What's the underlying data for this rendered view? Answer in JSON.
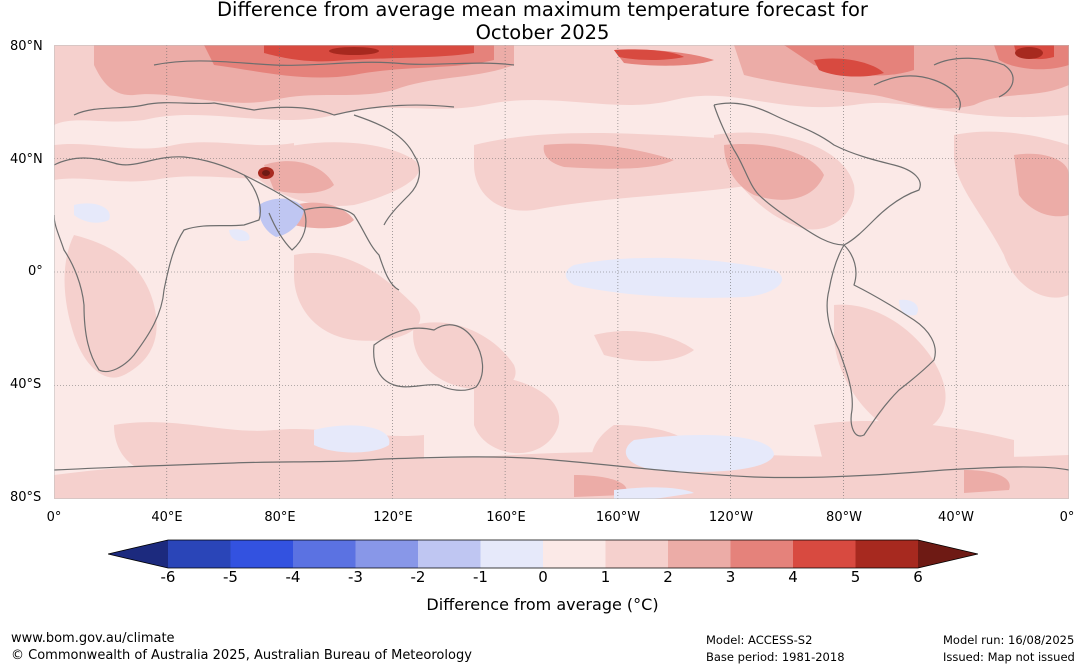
{
  "title_line1": "Difference from average mean maximum temperature forecast for",
  "title_line2": "October 2025",
  "lat_labels": [
    "80°N",
    "40°N",
    "0°",
    "40°S",
    "80°S"
  ],
  "lon_labels": [
    "0°",
    "40°E",
    "80°E",
    "120°E",
    "160°E",
    "160°W",
    "120°W",
    "80°W",
    "40°W",
    "0°"
  ],
  "colorbar": {
    "title": "Difference from average (°C)",
    "ticks": [
      "-6",
      "-5",
      "-4",
      "-3",
      "-2",
      "-1",
      "0",
      "1",
      "2",
      "3",
      "4",
      "5",
      "6"
    ],
    "colors": [
      "#1c2a7e",
      "#2a45b8",
      "#3352e0",
      "#5b72e2",
      "#8897e8",
      "#bfc6f2",
      "#e6e9fa",
      "#fbe9e7",
      "#f5d0cd",
      "#ecaca7",
      "#e5827b",
      "#d84a40",
      "#a7291f",
      "#6e1a14"
    ]
  },
  "footer": {
    "website": "www.bom.gov.au/climate",
    "copyright": "© Commonwealth of Australia 2025, Australian Bureau of Meteorology",
    "model": "Model: ACCESS-S2",
    "base_period": "Base period: 1981-2018",
    "model_run": "Model run: 16/08/2025",
    "issued": "Issued: Map not issued"
  }
}
